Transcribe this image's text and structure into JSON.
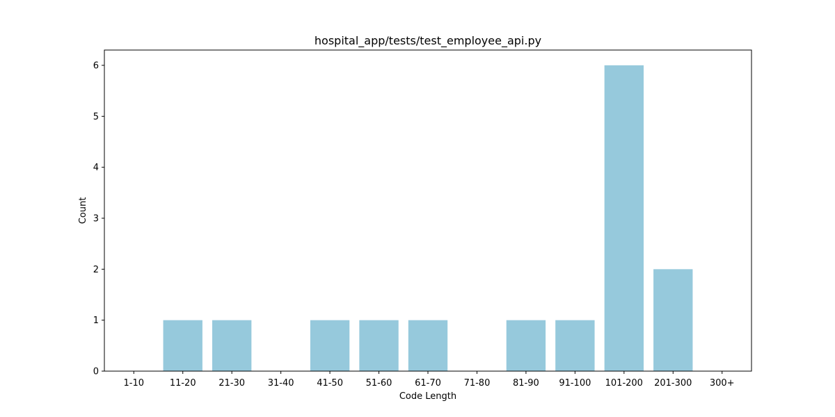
{
  "chart_data": {
    "type": "bar",
    "title": "hospital_app/tests/test_employee_api.py",
    "xlabel": "Code Length",
    "ylabel": "Count",
    "categories": [
      "1-10",
      "11-20",
      "21-30",
      "31-40",
      "41-50",
      "51-60",
      "61-70",
      "71-80",
      "81-90",
      "91-100",
      "101-200",
      "201-300",
      "300+"
    ],
    "values": [
      0,
      1,
      1,
      0,
      1,
      1,
      1,
      0,
      1,
      1,
      6,
      2,
      0
    ],
    "yticks": [
      0,
      1,
      2,
      3,
      4,
      5,
      6
    ],
    "ylim": [
      0,
      6.3
    ],
    "grid": false,
    "bar_color": "#96c9dc"
  }
}
